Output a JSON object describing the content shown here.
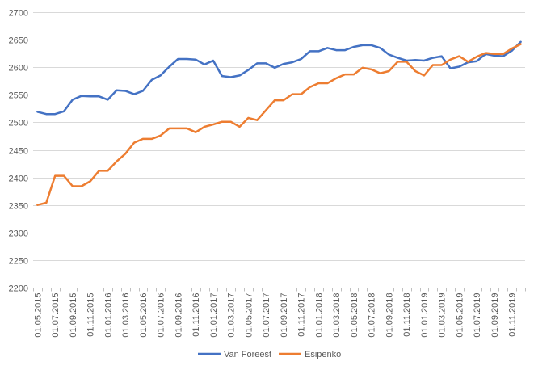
{
  "chart_data": {
    "type": "line",
    "title": "",
    "xlabel": "",
    "ylabel": "",
    "ylim": [
      2200,
      2700
    ],
    "y_ticks": [
      2200,
      2250,
      2300,
      2350,
      2400,
      2450,
      2500,
      2550,
      2600,
      2650,
      2700
    ],
    "grid": "horizontal",
    "legend_position": "bottom",
    "x": [
      "01.05.2015",
      "01.06.2015",
      "01.07.2015",
      "01.08.2015",
      "01.09.2015",
      "01.10.2015",
      "01.11.2015",
      "01.12.2015",
      "01.01.2016",
      "01.02.2016",
      "01.03.2016",
      "01.04.2016",
      "01.05.2016",
      "01.06.2016",
      "01.07.2016",
      "01.08.2016",
      "01.09.2016",
      "01.10.2016",
      "01.11.2016",
      "01.12.2016",
      "01.01.2017",
      "01.02.2017",
      "01.03.2017",
      "01.04.2017",
      "01.05.2017",
      "01.06.2017",
      "01.07.2017",
      "01.08.2017",
      "01.09.2017",
      "01.10.2017",
      "01.11.2017",
      "01.12.2017",
      "01.01.2018",
      "01.02.2018",
      "01.03.2018",
      "01.04.2018",
      "01.05.2018",
      "01.06.2018",
      "01.07.2018",
      "01.08.2018",
      "01.09.2018",
      "01.10.2018",
      "01.11.2018",
      "01.12.2018",
      "01.01.2019",
      "01.02.2019",
      "01.03.2019",
      "01.04.2019",
      "01.05.2019",
      "01.06.2019",
      "01.07.2019",
      "01.08.2019",
      "01.09.2019",
      "01.10.2019",
      "01.11.2019",
      "01.12.2019"
    ],
    "x_tick_labels": [
      "01.05.2015",
      "01.07.2015",
      "01.09.2015",
      "01.11.2015",
      "01.01.2016",
      "01.03.2016",
      "01.05.2016",
      "01.07.2016",
      "01.09.2016",
      "01.11.2016",
      "01.01.2017",
      "01.03.2017",
      "01.05.2017",
      "01.07.2017",
      "01.09.2017",
      "01.11.2017",
      "01.01.2018",
      "01.03.2018",
      "01.05.2018",
      "01.07.2018",
      "01.09.2018",
      "01.11.2018",
      "01.01.2019",
      "01.03.2019",
      "01.05.2019",
      "01.07.2019",
      "01.09.2019",
      "01.11.2019"
    ],
    "series": [
      {
        "name": "Van Foreest",
        "color": "#4472C4",
        "values": [
          2519,
          2515,
          2515,
          2520,
          2541,
          2548,
          2547,
          2547,
          2541,
          2558,
          2557,
          2551,
          2557,
          2577,
          2585,
          2601,
          2615,
          2615,
          2614,
          2605,
          2612,
          2584,
          2582,
          2585,
          2595,
          2607,
          2607,
          2599,
          2606,
          2609,
          2615,
          2629,
          2629,
          2635,
          2631,
          2631,
          2637,
          2640,
          2640,
          2635,
          2623,
          2617,
          2612,
          2613,
          2612,
          2617,
          2620,
          2598,
          2601,
          2609,
          2611,
          2624,
          2621,
          2620,
          2630,
          2646
        ]
      },
      {
        "name": "Esipenko",
        "color": "#ED7D31",
        "values": [
          2350,
          2354,
          2403,
          2403,
          2384,
          2384,
          2393,
          2412,
          2412,
          2429,
          2443,
          2463,
          2470,
          2470,
          2476,
          2489,
          2489,
          2489,
          2482,
          2492,
          2496,
          2501,
          2501,
          2492,
          2508,
          2504,
          2522,
          2540,
          2540,
          2551,
          2551,
          2564,
          2571,
          2571,
          2580,
          2587,
          2587,
          2599,
          2596,
          2589,
          2593,
          2610,
          2610,
          2593,
          2585,
          2604,
          2604,
          2614,
          2620,
          2610,
          2619,
          2626,
          2624,
          2624,
          2634,
          2642
        ]
      }
    ]
  }
}
